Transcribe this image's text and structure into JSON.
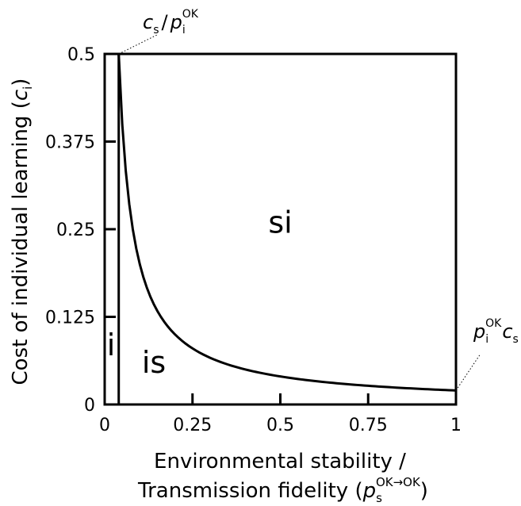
{
  "chart_data": {
    "type": "line",
    "xlabel_line1": "Environmental stability /",
    "xlabel_line2": "Transmission fidelity (",
    "xlabel_symbol": "p",
    "xlabel_sub": "s",
    "xlabel_sup": "OK→OK",
    "xlabel_close": ")",
    "ylabel": "Cost of individual learning (",
    "ylabel_symbol": "c",
    "ylabel_sub": "i",
    "ylabel_close": ")",
    "xlim": [
      0,
      1
    ],
    "ylim": [
      0,
      0.5
    ],
    "x_ticks": [
      {
        "value": 0,
        "label": "0"
      },
      {
        "value": 0.25,
        "label": "0.25"
      },
      {
        "value": 0.5,
        "label": "0.5"
      },
      {
        "value": 0.75,
        "label": "0.75"
      },
      {
        "value": 1,
        "label": "1"
      }
    ],
    "y_ticks": [
      {
        "value": 0,
        "label": "0"
      },
      {
        "value": 0.125,
        "label": "0.125"
      },
      {
        "value": 0.25,
        "label": "0.25"
      },
      {
        "value": 0.375,
        "label": "0.375"
      },
      {
        "value": 0.5,
        "label": "0.5"
      }
    ],
    "vertical_boundary_x": 0.04,
    "curve": {
      "formula": "y = 0.02 / x",
      "x_start": 0.04,
      "x_end": 1.0,
      "samples": 97
    },
    "regions": [
      {
        "label": "i",
        "x": 0.018,
        "y": 0.07
      },
      {
        "label": "is",
        "x": 0.14,
        "y": 0.045
      },
      {
        "label": "si",
        "x": 0.5,
        "y": 0.245
      }
    ],
    "annotations": {
      "top_label": {
        "c": "c",
        "c_sub": "s",
        "slash": "/",
        "p": "p",
        "p_sub": "i",
        "p_sup": "OK"
      },
      "right_label": {
        "p": "p",
        "p_sub": "i",
        "p_sup": "OK",
        "c": "c",
        "c_sub": "s"
      }
    },
    "grid": false,
    "line_color": "#000000"
  }
}
